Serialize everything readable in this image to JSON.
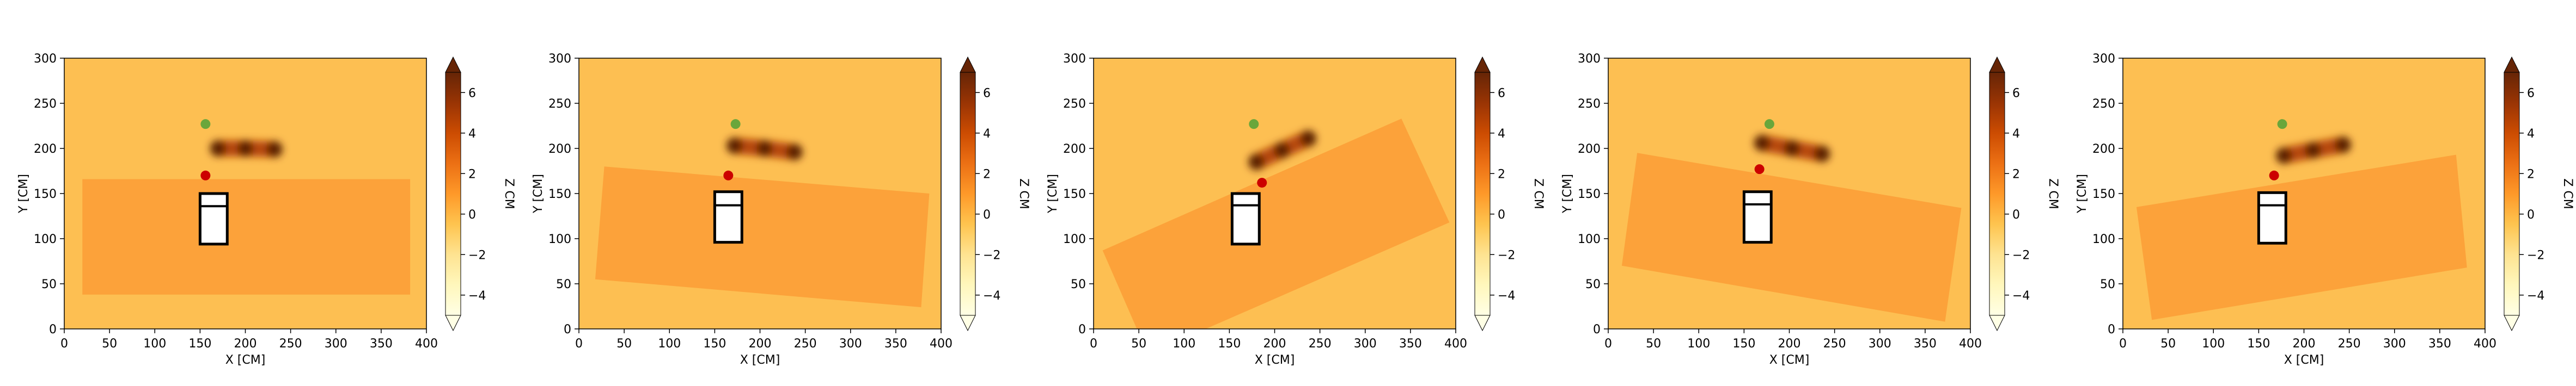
{
  "colors": {
    "background": "#fdbf52",
    "table_region": "#fca23a",
    "green_marker": "#6aa63b",
    "red_marker": "#cc0000",
    "object_outline": "#000000",
    "colormap": [
      "#ffffe5",
      "#fff7bc",
      "#fee391",
      "#fec44f",
      "#fe9929",
      "#ec7014",
      "#cc4c02",
      "#993404",
      "#662506"
    ]
  },
  "chart_data": [
    {
      "type": "heatmap",
      "xlabel": "X [CM]",
      "ylabel": "Y [CM]",
      "xlim": [
        0,
        400
      ],
      "ylim": [
        0,
        300
      ],
      "xticks": [
        "0",
        "50",
        "100",
        "150",
        "200",
        "250",
        "300",
        "350",
        "400"
      ],
      "yticks": [
        "0",
        "50",
        "100",
        "150",
        "200",
        "250",
        "300"
      ],
      "colorbar": {
        "label": "Z CM",
        "range": [
          -5,
          7
        ],
        "ticks": [
          "−4",
          "−2",
          "0",
          "2",
          "4",
          "6"
        ]
      },
      "table_corners": [
        [
          20,
          38
        ],
        [
          382,
          38
        ],
        [
          382,
          166
        ],
        [
          20,
          166
        ]
      ],
      "blob_points": [
        [
          170,
          200
        ],
        [
          200,
          200
        ],
        [
          232,
          199
        ]
      ],
      "green_point": [
        156,
        227
      ],
      "red_point": [
        156,
        170
      ],
      "object_box": {
        "x0": 150,
        "x1": 180,
        "y0": 94,
        "y1": 150,
        "divider_y": 136
      }
    },
    {
      "type": "heatmap",
      "xlabel": "X [CM]",
      "ylabel": "Y [CM]",
      "xlim": [
        0,
        400
      ],
      "ylim": [
        0,
        300
      ],
      "xticks": [
        "0",
        "50",
        "100",
        "150",
        "200",
        "250",
        "300",
        "350",
        "400"
      ],
      "yticks": [
        "0",
        "50",
        "100",
        "150",
        "200",
        "250",
        "300"
      ],
      "colorbar": {
        "label": "Z CM",
        "range": [
          -5,
          7
        ],
        "ticks": [
          "−4",
          "−2",
          "0",
          "2",
          "4",
          "6"
        ]
      },
      "table_corners": [
        [
          28,
          180
        ],
        [
          387,
          150
        ],
        [
          378,
          24
        ],
        [
          18,
          55
        ]
      ],
      "blob_points": [
        [
          172,
          203
        ],
        [
          205,
          200
        ],
        [
          238,
          196
        ]
      ],
      "green_point": [
        173,
        227
      ],
      "red_point": [
        165,
        170
      ],
      "object_box": {
        "x0": 150,
        "x1": 180,
        "y0": 96,
        "y1": 152,
        "divider_y": 137
      }
    },
    {
      "type": "heatmap",
      "xlabel": "X [CM]",
      "ylabel": "Y [CM]",
      "xlim": [
        0,
        400
      ],
      "ylim": [
        0,
        300
      ],
      "xticks": [
        "0",
        "50",
        "100",
        "150",
        "200",
        "250",
        "300",
        "350",
        "400"
      ],
      "yticks": [
        "0",
        "50",
        "100",
        "150",
        "200",
        "250",
        "300"
      ],
      "colorbar": {
        "label": "Z CM",
        "range": [
          -5,
          7
        ],
        "ticks": [
          "−4",
          "−2",
          "0",
          "2",
          "4",
          "6"
        ]
      },
      "table_corners": [
        [
          10,
          87
        ],
        [
          340,
          233
        ],
        [
          393,
          118
        ],
        [
          60,
          -28
        ]
      ],
      "blob_points": [
        [
          180,
          185
        ],
        [
          208,
          198
        ],
        [
          237,
          211
        ]
      ],
      "green_point": [
        177,
        227
      ],
      "red_point": [
        186,
        162
      ],
      "object_box": {
        "x0": 153,
        "x1": 183,
        "y0": 94,
        "y1": 150,
        "divider_y": 137
      }
    },
    {
      "type": "heatmap",
      "xlabel": "X [CM]",
      "ylabel": "Y [CM]",
      "xlim": [
        0,
        400
      ],
      "ylim": [
        0,
        300
      ],
      "xticks": [
        "0",
        "50",
        "100",
        "150",
        "200",
        "250",
        "300",
        "350",
        "400"
      ],
      "yticks": [
        "0",
        "50",
        "100",
        "150",
        "200",
        "250",
        "300"
      ],
      "colorbar": {
        "label": "Z CM",
        "range": [
          -5,
          7
        ],
        "ticks": [
          "−4",
          "−2",
          "0",
          "2",
          "4",
          "6"
        ]
      },
      "table_corners": [
        [
          32,
          195
        ],
        [
          390,
          134
        ],
        [
          372,
          8
        ],
        [
          15,
          70
        ]
      ],
      "blob_points": [
        [
          170,
          206
        ],
        [
          203,
          200
        ],
        [
          236,
          194
        ]
      ],
      "green_point": [
        178,
        227
      ],
      "red_point": [
        167,
        177
      ],
      "object_box": {
        "x0": 150,
        "x1": 180,
        "y0": 96,
        "y1": 152,
        "divider_y": 138
      }
    },
    {
      "type": "heatmap",
      "xlabel": "X [CM]",
      "ylabel": "Y [CM]",
      "xlim": [
        0,
        400
      ],
      "ylim": [
        0,
        300
      ],
      "xticks": [
        "0",
        "50",
        "100",
        "150",
        "200",
        "250",
        "300",
        "350",
        "400"
      ],
      "yticks": [
        "0",
        "50",
        "100",
        "150",
        "200",
        "250",
        "300"
      ],
      "colorbar": {
        "label": "Z CM",
        "range": [
          -5,
          7
        ],
        "ticks": [
          "−4",
          "−2",
          "0",
          "2",
          "4",
          "6"
        ]
      },
      "table_corners": [
        [
          15,
          135
        ],
        [
          368,
          193
        ],
        [
          380,
          68
        ],
        [
          32,
          10
        ]
      ],
      "blob_points": [
        [
          178,
          192
        ],
        [
          210,
          198
        ],
        [
          243,
          204
        ]
      ],
      "green_point": [
        176,
        227
      ],
      "red_point": [
        167,
        170
      ],
      "object_box": {
        "x0": 150,
        "x1": 180,
        "y0": 95,
        "y1": 151,
        "divider_y": 137
      }
    }
  ]
}
